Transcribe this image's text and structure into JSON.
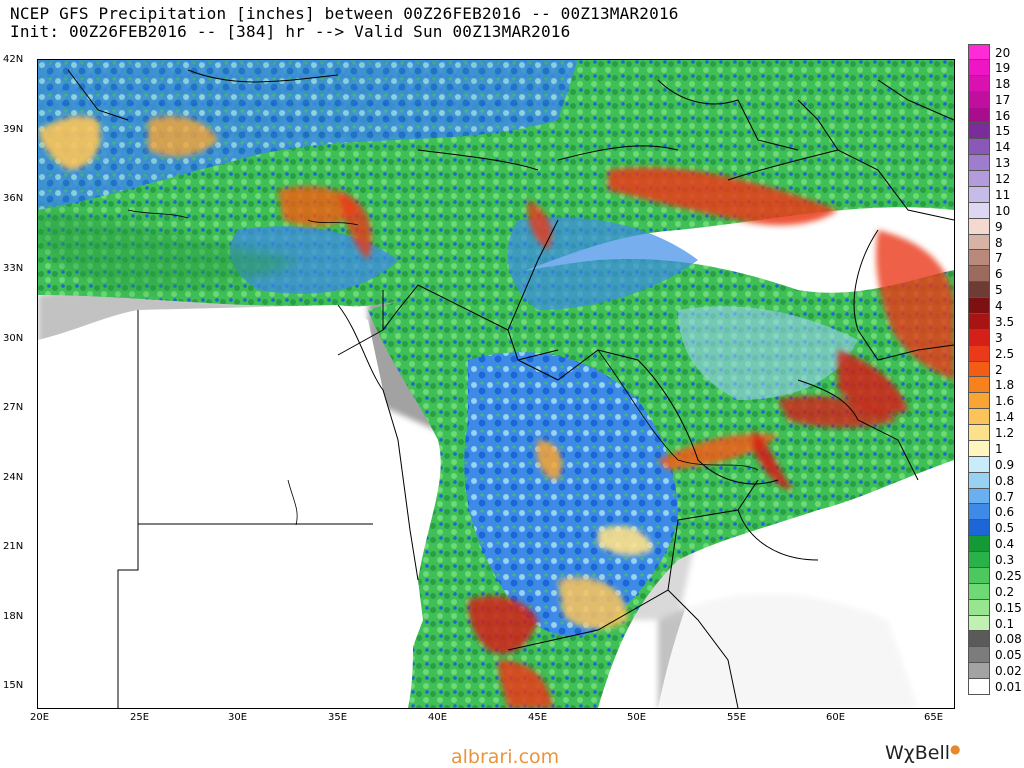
{
  "header": {
    "line1": "NCEP GFS Precipitation [inches] between 00Z26FEB2016 -- 00Z13MAR2016",
    "line2": "Init: 00Z26FEB2016 -- [384] hr --> Valid Sun 00Z13MAR2016"
  },
  "map": {
    "lat_labels": [
      "42N",
      "39N",
      "36N",
      "33N",
      "30N",
      "27N",
      "24N",
      "21N",
      "18N",
      "15N"
    ],
    "lon_labels": [
      "20E",
      "25E",
      "30E",
      "35E",
      "40E",
      "45E",
      "50E",
      "55E",
      "60E",
      "65E"
    ]
  },
  "colorbar": {
    "levels": [
      {
        "label": "20",
        "color": "#ff2bd6"
      },
      {
        "label": "19",
        "color": "#ee16c4"
      },
      {
        "label": "18",
        "color": "#d911b1"
      },
      {
        "label": "17",
        "color": "#be0f9e"
      },
      {
        "label": "16",
        "color": "#a70d8c"
      },
      {
        "label": "15",
        "color": "#7a2c9a"
      },
      {
        "label": "14",
        "color": "#8a58b8"
      },
      {
        "label": "13",
        "color": "#9f7ccc"
      },
      {
        "label": "12",
        "color": "#b29cdb"
      },
      {
        "label": "11",
        "color": "#c7bce8"
      },
      {
        "label": "10",
        "color": "#ddd7f3"
      },
      {
        "label": "9",
        "color": "#f4d9d1"
      },
      {
        "label": "8",
        "color": "#d9b2a6"
      },
      {
        "label": "7",
        "color": "#b98a7c"
      },
      {
        "label": "6",
        "color": "#9b6b60"
      },
      {
        "label": "5",
        "color": "#6e3c34"
      },
      {
        "label": "4",
        "color": "#7d1010"
      },
      {
        "label": "3.5",
        "color": "#a81414"
      },
      {
        "label": "3",
        "color": "#d32019"
      },
      {
        "label": "2.5",
        "color": "#ea3a1a"
      },
      {
        "label": "2",
        "color": "#f25c14"
      },
      {
        "label": "1.8",
        "color": "#f8811b"
      },
      {
        "label": "1.6",
        "color": "#f9a533"
      },
      {
        "label": "1.4",
        "color": "#fbc45a"
      },
      {
        "label": "1.2",
        "color": "#fde18a"
      },
      {
        "label": "1",
        "color": "#fef5bf"
      },
      {
        "label": "0.9",
        "color": "#c9ecfa"
      },
      {
        "label": "0.8",
        "color": "#98d1f2"
      },
      {
        "label": "0.7",
        "color": "#6aaff0"
      },
      {
        "label": "0.6",
        "color": "#3d8be6"
      },
      {
        "label": "0.5",
        "color": "#1c66d6"
      },
      {
        "label": "0.4",
        "color": "#159936"
      },
      {
        "label": "0.3",
        "color": "#2ab24a"
      },
      {
        "label": "0.25",
        "color": "#4cc85e"
      },
      {
        "label": "0.2",
        "color": "#6fd975"
      },
      {
        "label": "0.15",
        "color": "#97e68f"
      },
      {
        "label": "0.1",
        "color": "#c0f0b2"
      },
      {
        "label": "0.08",
        "color": "#5a5a5a"
      },
      {
        "label": "0.05",
        "color": "#7c7c7c"
      },
      {
        "label": "0.02",
        "color": "#a3a3a3"
      },
      {
        "label": "0.01",
        "color": "#ffffff"
      }
    ]
  },
  "watermark": "albrari.com",
  "brand": {
    "text": "WχBell",
    "dot": "●"
  }
}
